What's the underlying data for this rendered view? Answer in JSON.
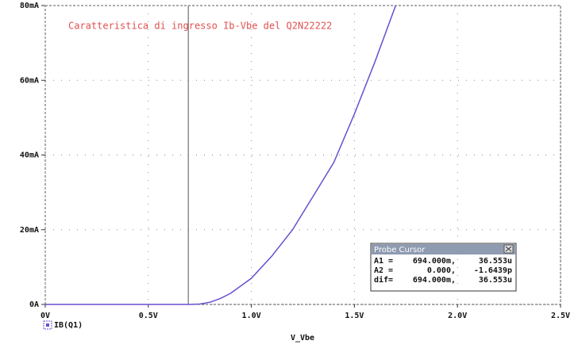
{
  "chart_data": {
    "type": "line",
    "title": "Caratteristica di ingresso Ib-Vbe del Q2N22222",
    "x_label": "V_Vbe",
    "x": [
      0,
      0.5,
      0.7,
      0.75,
      0.8,
      0.85,
      0.9,
      1.0,
      1.1,
      1.2,
      1.3,
      1.4,
      1.5,
      1.6,
      1.7
    ],
    "series": [
      {
        "name": "IB(Q1)",
        "color": "#6a4fd0",
        "values": [
          0,
          0,
          0,
          0.1,
          0.6,
          1.6,
          3,
          7,
          13,
          20,
          29,
          38,
          51,
          65,
          80
        ]
      }
    ],
    "xlim": [
      0,
      2.5
    ],
    "xticks": [
      {
        "value": 0,
        "label": "0V"
      },
      {
        "value": 0.5,
        "label": "0.5V"
      },
      {
        "value": 1.0,
        "label": "1.0V"
      },
      {
        "value": 1.5,
        "label": "1.5V"
      },
      {
        "value": 2.0,
        "label": "2.0V"
      },
      {
        "value": 2.5,
        "label": "2.5V"
      }
    ],
    "ylim": [
      0,
      80
    ],
    "yticks": [
      {
        "value": 0,
        "label": "0A"
      },
      {
        "value": 20,
        "label": "20mA"
      },
      {
        "value": 40,
        "label": "40mA"
      },
      {
        "value": 60,
        "label": "60mA"
      },
      {
        "value": 80,
        "label": "80mA"
      }
    ],
    "grid": true,
    "cursor_x": 0.694,
    "cursor_box": {
      "title": "Probe Cursor",
      "rows": [
        [
          "A1 =",
          "694.000m,",
          "36.553u"
        ],
        [
          "A2 =",
          "0.000,",
          "-1.6439p"
        ],
        [
          "dif=",
          "694.000m,",
          "36.553u"
        ]
      ]
    }
  }
}
